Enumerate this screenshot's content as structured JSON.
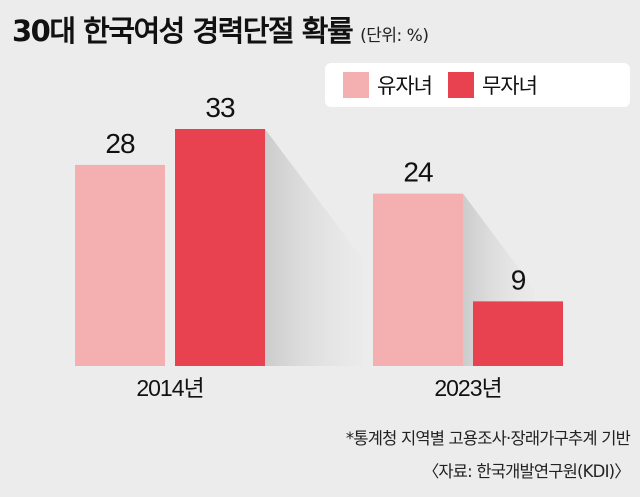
{
  "title": "30대 한국여성 경력단절 확률",
  "unit": "(단위: %)",
  "legend": {
    "items": [
      {
        "label": "유자녀",
        "color": "#f4b0b0"
      },
      {
        "label": "무자녀",
        "color": "#e8414f"
      }
    ]
  },
  "footnotes": {
    "source": "*통계청 지역별 고용조사·장래가구추계 기반",
    "credit": "〈자료: 한국개발연구원(KDI)〉"
  },
  "chart_data": {
    "type": "bar",
    "title": "30대 한국여성 경력단절 확률",
    "categories": [
      "2014년",
      "2023년"
    ],
    "series": [
      {
        "name": "유자녀",
        "values": [
          28,
          24
        ],
        "color": "#f4b0b0"
      },
      {
        "name": "무자녀",
        "values": [
          33,
          9
        ],
        "color": "#e8414f"
      }
    ],
    "ylim": [
      0,
      33
    ],
    "grid": false,
    "legend_position": "top-right",
    "data_labels": true
  }
}
